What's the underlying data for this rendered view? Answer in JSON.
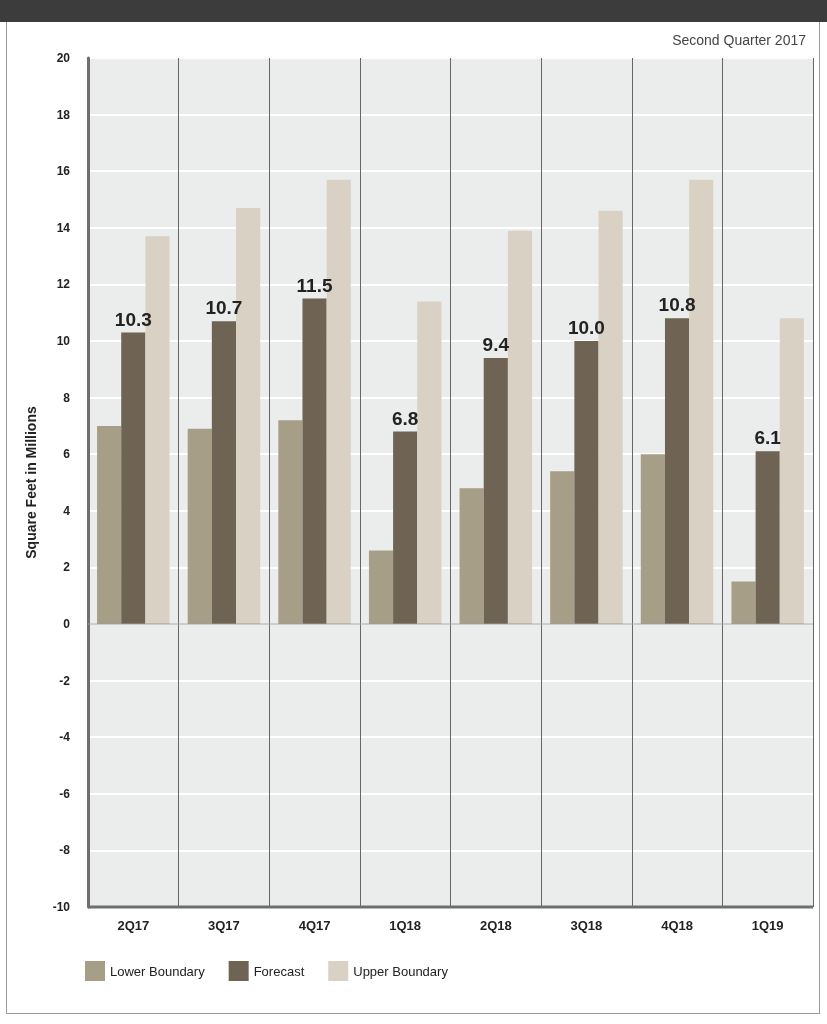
{
  "chart_data": {
    "type": "bar",
    "subtitle": "Second Quarter 2017",
    "ylabel": "Square Feet in Millions",
    "categories": [
      "2Q17",
      "3Q17",
      "4Q17",
      "1Q18",
      "2Q18",
      "3Q18",
      "4Q18",
      "1Q19"
    ],
    "series": [
      {
        "name": "Lower Boundary",
        "color": "#a69e86",
        "values": [
          7.0,
          6.9,
          7.2,
          2.6,
          4.8,
          5.4,
          6.0,
          1.5
        ]
      },
      {
        "name": "Forecast",
        "color": "#6f6353",
        "values": [
          10.3,
          10.7,
          11.5,
          6.8,
          9.4,
          10.0,
          10.8,
          6.1
        ],
        "value_labels": [
          "10.3",
          "10.7",
          "11.5",
          "6.8",
          "9.4",
          "10.0",
          "10.8",
          "6.1"
        ]
      },
      {
        "name": "Upper Boundary",
        "color": "#d9d2c4",
        "values": [
          13.7,
          14.7,
          15.7,
          11.4,
          13.9,
          14.6,
          15.7,
          10.8
        ]
      }
    ],
    "ylim": [
      -10,
      20
    ],
    "yticks": [
      -10,
      -8,
      -6,
      -4,
      -2,
      0,
      2,
      4,
      6,
      8,
      10,
      12,
      14,
      16,
      18,
      20
    ],
    "grid": true,
    "legend": "bottom left"
  }
}
